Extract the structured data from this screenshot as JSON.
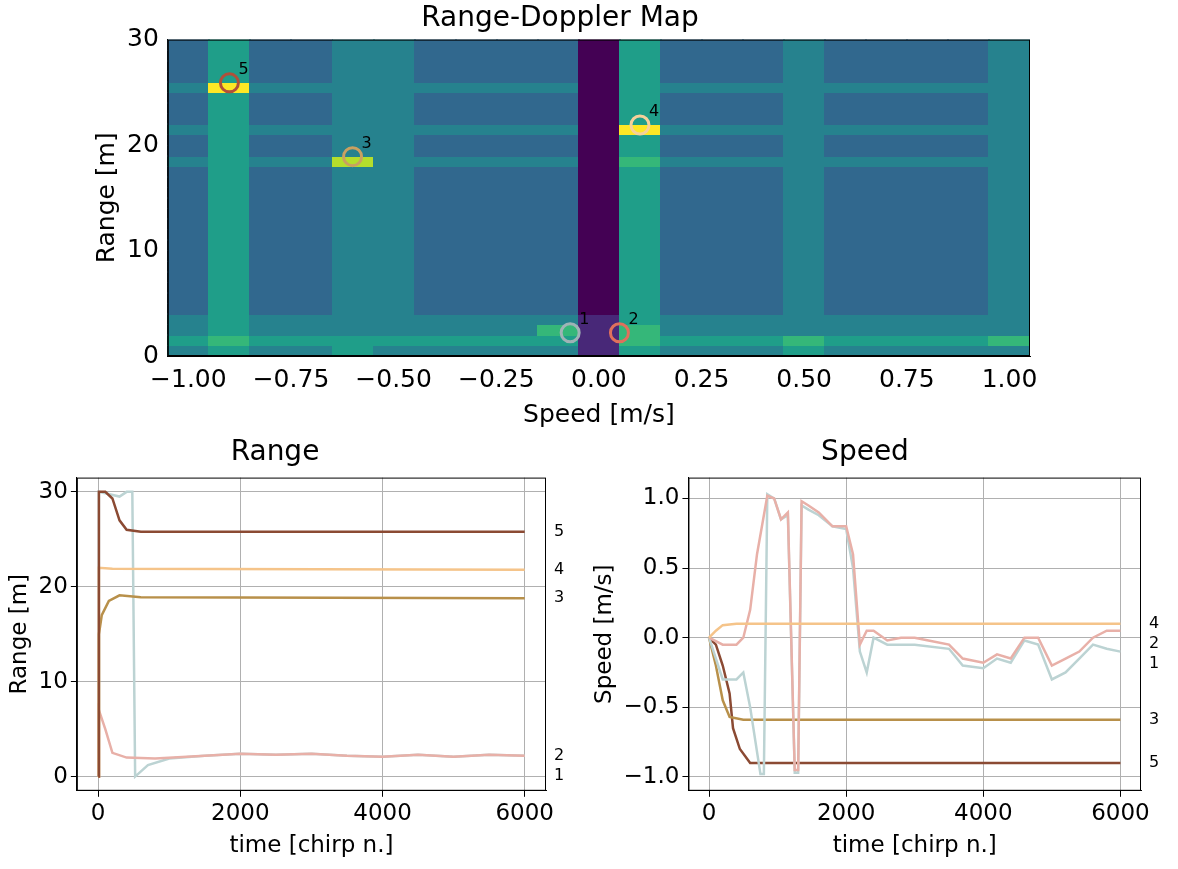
{
  "chart_data": [
    {
      "type": "heatmap",
      "title": "Range-Doppler Map",
      "x_label": "Speed [m/s]",
      "y_label": "Range [m]",
      "xlim": [
        -1.05,
        1.05
      ],
      "xticks": [
        {
          "value": -1.0,
          "label": "−1.00"
        },
        {
          "value": -0.75,
          "label": "−0.75"
        },
        {
          "value": -0.5,
          "label": "−0.50"
        },
        {
          "value": -0.25,
          "label": "−0.25"
        },
        {
          "value": 0.0,
          "label": "0.00"
        },
        {
          "value": 0.25,
          "label": "0.25"
        },
        {
          "value": 0.5,
          "label": "0.50"
        },
        {
          "value": 0.75,
          "label": "0.75"
        },
        {
          "value": 1.0,
          "label": "1.00"
        }
      ],
      "ylim": [
        0,
        30
      ],
      "yticks": [
        0,
        10,
        20,
        30
      ],
      "grid": false,
      "cell_x": [
        -1.0,
        -0.9,
        -0.8,
        -0.7,
        -0.6,
        -0.5,
        -0.4,
        -0.3,
        -0.2,
        -0.1,
        0.0,
        0.1,
        0.2,
        0.3,
        0.4,
        0.5,
        0.6,
        0.7,
        0.8,
        0.9,
        1.0
      ],
      "cell_y": [
        0.5,
        1.5,
        2.5,
        3.5,
        4.5,
        5.5,
        6.5,
        7.5,
        8.5,
        9.5,
        10.5,
        11.5,
        12.5,
        13.5,
        14.5,
        15.5,
        16.5,
        17.5,
        18.5,
        19.5,
        20.5,
        21.5,
        22.5,
        23.5,
        24.5,
        25.5,
        26.5,
        27.5,
        28.5,
        29.5
      ],
      "cells": [
        [
          4,
          5,
          4,
          4,
          5,
          4,
          4,
          4,
          4,
          4,
          1,
          5,
          4,
          4,
          4,
          5,
          4,
          4,
          4,
          4,
          4
        ],
        [
          5,
          6,
          5,
          5,
          5,
          5,
          5,
          5,
          5,
          5,
          1,
          6,
          5,
          5,
          5,
          6,
          5,
          5,
          5,
          5,
          6
        ],
        [
          4,
          5,
          4,
          4,
          4,
          4,
          4,
          4,
          4,
          6,
          1,
          6,
          4,
          4,
          4,
          4,
          4,
          4,
          4,
          4,
          4
        ],
        [
          4,
          5,
          4,
          4,
          4,
          4,
          4,
          4,
          4,
          4,
          1,
          5,
          4,
          4,
          4,
          4,
          4,
          4,
          4,
          4,
          4
        ],
        [
          3,
          5,
          3,
          3,
          4,
          4,
          3,
          3,
          3,
          3,
          0,
          5,
          3,
          3,
          3,
          4,
          3,
          3,
          3,
          3,
          4
        ],
        [
          3,
          5,
          3,
          3,
          4,
          4,
          3,
          3,
          3,
          3,
          0,
          5,
          3,
          3,
          3,
          4,
          3,
          3,
          3,
          3,
          4
        ],
        [
          3,
          5,
          3,
          3,
          4,
          4,
          3,
          3,
          3,
          3,
          0,
          5,
          3,
          3,
          3,
          4,
          3,
          3,
          3,
          3,
          4
        ],
        [
          3,
          5,
          3,
          3,
          4,
          4,
          3,
          3,
          3,
          3,
          0,
          5,
          3,
          3,
          3,
          4,
          3,
          3,
          3,
          3,
          4
        ],
        [
          3,
          5,
          3,
          3,
          4,
          4,
          3,
          3,
          3,
          3,
          0,
          5,
          3,
          3,
          3,
          4,
          3,
          3,
          3,
          3,
          4
        ],
        [
          3,
          5,
          3,
          3,
          4,
          4,
          3,
          3,
          3,
          3,
          0,
          5,
          3,
          3,
          3,
          4,
          3,
          3,
          3,
          3,
          4
        ],
        [
          3,
          5,
          3,
          3,
          4,
          4,
          3,
          3,
          3,
          3,
          0,
          5,
          3,
          3,
          3,
          4,
          3,
          3,
          3,
          3,
          4
        ],
        [
          3,
          5,
          3,
          3,
          4,
          4,
          3,
          3,
          3,
          3,
          0,
          5,
          3,
          3,
          3,
          4,
          3,
          3,
          3,
          3,
          4
        ],
        [
          3,
          5,
          3,
          3,
          4,
          4,
          3,
          3,
          3,
          3,
          0,
          5,
          3,
          3,
          3,
          4,
          3,
          3,
          3,
          3,
          4
        ],
        [
          3,
          5,
          3,
          3,
          4,
          4,
          3,
          3,
          3,
          3,
          0,
          5,
          3,
          3,
          3,
          4,
          3,
          3,
          3,
          3,
          4
        ],
        [
          3,
          5,
          3,
          3,
          4,
          4,
          3,
          3,
          3,
          3,
          0,
          5,
          3,
          3,
          3,
          4,
          3,
          3,
          3,
          3,
          4
        ],
        [
          3,
          5,
          3,
          3,
          4,
          4,
          3,
          3,
          3,
          3,
          0,
          5,
          3,
          3,
          3,
          4,
          3,
          3,
          3,
          3,
          4
        ],
        [
          3,
          5,
          3,
          3,
          4,
          4,
          3,
          3,
          3,
          3,
          0,
          5,
          3,
          3,
          3,
          4,
          3,
          3,
          3,
          3,
          4
        ],
        [
          3,
          5,
          3,
          3,
          4,
          4,
          3,
          3,
          3,
          3,
          0,
          5,
          3,
          3,
          3,
          4,
          3,
          3,
          3,
          3,
          4
        ],
        [
          4,
          5,
          4,
          4,
          8,
          4,
          4,
          4,
          4,
          4,
          0,
          6,
          4,
          4,
          4,
          4,
          4,
          4,
          4,
          4,
          4
        ],
        [
          3,
          5,
          3,
          3,
          4,
          4,
          3,
          3,
          3,
          3,
          0,
          5,
          3,
          3,
          3,
          4,
          3,
          3,
          3,
          3,
          4
        ],
        [
          3,
          5,
          3,
          3,
          4,
          4,
          3,
          3,
          3,
          3,
          0,
          5,
          3,
          3,
          3,
          4,
          3,
          3,
          3,
          3,
          4
        ],
        [
          4,
          5,
          4,
          4,
          4,
          4,
          4,
          4,
          4,
          4,
          0,
          9,
          4,
          4,
          4,
          4,
          4,
          4,
          4,
          4,
          4
        ],
        [
          3,
          5,
          3,
          3,
          4,
          4,
          3,
          3,
          3,
          3,
          0,
          5,
          3,
          3,
          3,
          4,
          3,
          3,
          3,
          3,
          4
        ],
        [
          3,
          5,
          3,
          3,
          4,
          4,
          3,
          3,
          3,
          3,
          0,
          5,
          3,
          3,
          3,
          4,
          3,
          3,
          3,
          3,
          4
        ],
        [
          3,
          5,
          3,
          3,
          4,
          4,
          3,
          3,
          3,
          3,
          0,
          5,
          3,
          3,
          3,
          4,
          3,
          3,
          3,
          3,
          4
        ],
        [
          4,
          9,
          4,
          4,
          4,
          4,
          4,
          4,
          4,
          4,
          0,
          5,
          4,
          4,
          4,
          4,
          4,
          4,
          4,
          4,
          4
        ],
        [
          3,
          5,
          3,
          3,
          4,
          4,
          3,
          3,
          3,
          3,
          0,
          5,
          3,
          3,
          3,
          4,
          3,
          3,
          3,
          3,
          4
        ],
        [
          3,
          5,
          3,
          3,
          4,
          4,
          3,
          3,
          3,
          3,
          0,
          5,
          3,
          3,
          3,
          4,
          3,
          3,
          3,
          3,
          4
        ],
        [
          3,
          5,
          3,
          3,
          4,
          4,
          3,
          3,
          3,
          3,
          0,
          5,
          3,
          3,
          3,
          4,
          3,
          3,
          3,
          3,
          4
        ],
        [
          3,
          5,
          3,
          3,
          4,
          4,
          3,
          3,
          3,
          3,
          0,
          5,
          3,
          3,
          3,
          4,
          3,
          3,
          3,
          3,
          4
        ]
      ],
      "series": [
        {
          "name": "1",
          "color": "#9fb3b6",
          "marker": "circle",
          "x": [
            -0.07
          ],
          "values": [
            2.2
          ]
        },
        {
          "name": "2",
          "color": "#e0705c",
          "marker": "circle",
          "x": [
            0.05
          ],
          "values": [
            2.2
          ]
        },
        {
          "name": "3",
          "color": "#c9a060",
          "marker": "circle",
          "x": [
            -0.6
          ],
          "values": [
            18.9
          ]
        },
        {
          "name": "4",
          "color": "#f5d09a",
          "marker": "circle",
          "x": [
            0.1
          ],
          "values": [
            21.9
          ]
        },
        {
          "name": "5",
          "color": "#b0503a",
          "marker": "circle",
          "x": [
            -0.9
          ],
          "values": [
            25.9
          ]
        }
      ]
    },
    {
      "type": "line",
      "title": "Range",
      "x_label": "time [chirp n.]",
      "y_label": "Range [m]",
      "xlim": [
        -300,
        6300
      ],
      "xticks": [
        0,
        2000,
        4000,
        6000
      ],
      "ylim": [
        -1.5,
        31.5
      ],
      "yticks": [
        0,
        10,
        20,
        30
      ],
      "grid": true,
      "series": [
        {
          "name": "5",
          "color": "#8b4a33",
          "x": [
            0,
            10,
            100,
            200,
            300,
            400,
            600,
            6000
          ],
          "values": [
            0,
            30,
            30,
            29.3,
            27,
            26,
            25.8,
            25.8
          ]
        },
        {
          "name": "4",
          "color": "#f5c48a",
          "x": [
            0,
            10,
            200,
            6000
          ],
          "values": [
            0,
            22,
            21.9,
            21.8
          ]
        },
        {
          "name": "3",
          "color": "#b8904a",
          "x": [
            0,
            10,
            50,
            150,
            300,
            600,
            6000
          ],
          "values": [
            0,
            15,
            17,
            18.5,
            19.1,
            18.9,
            18.8
          ]
        },
        {
          "name": "2",
          "color": "#e8b0a8",
          "x": [
            0,
            10,
            100,
            200,
            400,
            800,
            1500,
            2000,
            2500,
            3000,
            3500,
            4000,
            4500,
            5000,
            5500,
            6000
          ],
          "values": [
            0,
            7,
            5,
            2.5,
            2,
            1.9,
            2.2,
            2.4,
            2.3,
            2.4,
            2.2,
            2.1,
            2.3,
            2.1,
            2.3,
            2.2
          ]
        },
        {
          "name": "1",
          "color": "#bcd3d3",
          "x": [
            0,
            10,
            300,
            400,
            480,
            520,
            700,
            1000,
            1500,
            2000,
            2500,
            3000,
            3500,
            4000,
            4500,
            5000,
            5500,
            6000
          ],
          "values": [
            0,
            30,
            29.5,
            30,
            30,
            0,
            1.2,
            1.9,
            2.2,
            2.4,
            2.3,
            2.4,
            2.2,
            2.1,
            2.3,
            2.1,
            2.3,
            2.2
          ]
        }
      ]
    },
    {
      "type": "line",
      "title": "Speed",
      "x_label": "time [chirp n.]",
      "y_label": "Speed [m/s]",
      "xlim": [
        -300,
        6300
      ],
      "xticks": [
        0,
        2000,
        4000,
        6000
      ],
      "ylim": [
        -1.1,
        1.15
      ],
      "yticks": [
        {
          "value": -1.0,
          "label": "−1.0"
        },
        {
          "value": -0.5,
          "label": "−0.5"
        },
        {
          "value": 0.0,
          "label": "0.0"
        },
        {
          "value": 0.5,
          "label": "0.5"
        },
        {
          "value": 1.0,
          "label": "1.0"
        }
      ],
      "grid": true,
      "series": [
        {
          "name": "4",
          "color": "#f5c48a",
          "x": [
            0,
            100,
            200,
            400,
            6000
          ],
          "values": [
            0,
            0.05,
            0.09,
            0.1,
            0.1
          ]
        },
        {
          "name": "2",
          "color": "#e8b0a8",
          "x": [
            0,
            200,
            400,
            500,
            600,
            700,
            850,
            950,
            1050,
            1150,
            1250,
            1300,
            1350,
            1450,
            1600,
            1700,
            1800,
            2000,
            2100,
            2200,
            2300,
            2400,
            2600,
            2800,
            3000,
            3200,
            3500,
            3700,
            4000,
            4200,
            4400,
            4600,
            4800,
            5000,
            5200,
            5400,
            5600,
            5800,
            6000
          ],
          "values": [
            0,
            -0.05,
            -0.05,
            0,
            0.2,
            0.6,
            1.02,
            1.0,
            0.85,
            0.9,
            -0.95,
            -0.95,
            0.98,
            0.95,
            0.9,
            0.85,
            0.8,
            0.8,
            0.6,
            -0.05,
            0.05,
            0.05,
            -0.02,
            0.0,
            0.0,
            -0.02,
            -0.05,
            -0.15,
            -0.18,
            -0.12,
            -0.15,
            0.0,
            0.0,
            -0.2,
            -0.15,
            -0.1,
            0.0,
            0.05,
            0.05
          ]
        },
        {
          "name": "1",
          "color": "#bcd3d3",
          "x": [
            0,
            200,
            400,
            500,
            600,
            750,
            800,
            850,
            950,
            1050,
            1150,
            1250,
            1300,
            1350,
            1450,
            1600,
            1800,
            2000,
            2100,
            2200,
            2300,
            2400,
            2600,
            3000,
            3500,
            3700,
            4000,
            4200,
            4400,
            4600,
            4800,
            5000,
            5200,
            5400,
            5600,
            5800,
            6000
          ],
          "values": [
            0,
            -0.3,
            -0.3,
            -0.25,
            -0.5,
            -0.98,
            -0.98,
            1.03,
            1.0,
            0.85,
            0.88,
            -0.97,
            -0.97,
            0.95,
            0.92,
            0.88,
            0.8,
            0.78,
            0.5,
            -0.1,
            -0.25,
            0.0,
            -0.05,
            -0.05,
            -0.08,
            -0.2,
            -0.22,
            -0.15,
            -0.18,
            -0.02,
            -0.05,
            -0.3,
            -0.25,
            -0.15,
            -0.05,
            -0.08,
            -0.1
          ]
        },
        {
          "name": "3",
          "color": "#b8904a",
          "x": [
            0,
            100,
            200,
            300,
            500,
            6000
          ],
          "values": [
            0,
            -0.2,
            -0.45,
            -0.57,
            -0.59,
            -0.59
          ]
        },
        {
          "name": "5",
          "color": "#8b4a33",
          "x": [
            0,
            100,
            200,
            300,
            350,
            450,
            600,
            6000
          ],
          "values": [
            0,
            -0.05,
            -0.2,
            -0.4,
            -0.65,
            -0.8,
            -0.9,
            -0.9
          ]
        }
      ]
    }
  ]
}
